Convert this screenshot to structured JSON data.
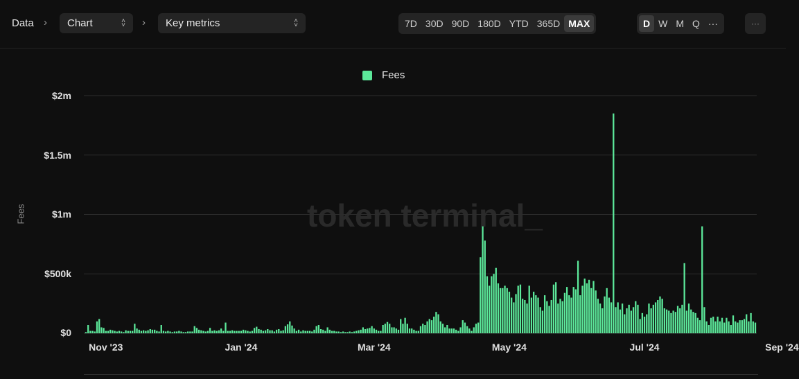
{
  "breadcrumb": {
    "root": "Data",
    "select1": "Chart",
    "select2": "Key metrics"
  },
  "range_buttons": [
    "7D",
    "30D",
    "90D",
    "180D",
    "YTD",
    "365D",
    "MAX"
  ],
  "range_active": "MAX",
  "granularity_buttons": [
    "D",
    "W",
    "M",
    "Q",
    "···"
  ],
  "granularity_active": "D",
  "more_label": "···",
  "watermark": "token terminal_",
  "colors": {
    "accent": "#5ce89a",
    "background": "#0f0f0f",
    "gridline": "#2c2c2c"
  },
  "chart_data": {
    "type": "bar",
    "title": "",
    "legend": [
      "Fees"
    ],
    "legend_position": "top-center",
    "ylabel": "Fees",
    "xlabel": "",
    "ylim": [
      0,
      2000000
    ],
    "yticks": [
      0,
      500000,
      1000000,
      1500000,
      2000000
    ],
    "ytick_labels": [
      "$0",
      "$500k",
      "$1m",
      "$1.5m",
      "$2m"
    ],
    "xticks": [
      "2023-11-01",
      "2024-01-01",
      "2024-03-01",
      "2024-05-01",
      "2024-07-01",
      "2024-09-01"
    ],
    "xtick_labels": [
      "Nov '23",
      "Jan '24",
      "Mar '24",
      "May '24",
      "Jul '24",
      "Sep '24"
    ],
    "grid": true,
    "series": [
      {
        "name": "Fees",
        "start_date": "2023-10-23",
        "interval": "1 day",
        "values": [
          10000,
          70000,
          20000,
          20000,
          15000,
          100000,
          120000,
          50000,
          45000,
          20000,
          20000,
          30000,
          25000,
          20000,
          15000,
          20000,
          15000,
          10000,
          25000,
          20000,
          20000,
          20000,
          80000,
          40000,
          30000,
          20000,
          25000,
          20000,
          25000,
          35000,
          30000,
          30000,
          20000,
          15000,
          70000,
          20000,
          15000,
          20000,
          15000,
          10000,
          15000,
          15000,
          20000,
          15000,
          10000,
          10000,
          15000,
          15000,
          15000,
          60000,
          45000,
          30000,
          25000,
          20000,
          15000,
          20000,
          45000,
          20000,
          25000,
          20000,
          25000,
          40000,
          20000,
          90000,
          20000,
          20000,
          25000,
          20000,
          20000,
          20000,
          20000,
          30000,
          25000,
          20000,
          15000,
          20000,
          45000,
          55000,
          35000,
          30000,
          20000,
          25000,
          35000,
          25000,
          25000,
          15000,
          30000,
          35000,
          20000,
          25000,
          60000,
          75000,
          100000,
          65000,
          40000,
          20000,
          30000,
          15000,
          25000,
          20000,
          20000,
          20000,
          15000,
          30000,
          60000,
          70000,
          35000,
          30000,
          20000,
          50000,
          30000,
          20000,
          20000,
          15000,
          15000,
          10000,
          15000,
          10000,
          10000,
          15000,
          10000,
          15000,
          20000,
          25000,
          30000,
          50000,
          35000,
          40000,
          45000,
          60000,
          40000,
          30000,
          20000,
          20000,
          70000,
          80000,
          95000,
          80000,
          50000,
          50000,
          40000,
          30000,
          120000,
          80000,
          130000,
          80000,
          40000,
          40000,
          30000,
          20000,
          20000,
          60000,
          80000,
          70000,
          100000,
          120000,
          110000,
          140000,
          180000,
          160000,
          100000,
          80000,
          50000,
          70000,
          40000,
          40000,
          40000,
          30000,
          20000,
          50000,
          110000,
          90000,
          60000,
          40000,
          20000,
          50000,
          80000,
          90000,
          640000,
          900000,
          780000,
          480000,
          400000,
          480000,
          500000,
          550000,
          420000,
          380000,
          380000,
          400000,
          380000,
          350000,
          300000,
          260000,
          330000,
          400000,
          410000,
          290000,
          280000,
          250000,
          400000,
          300000,
          350000,
          320000,
          300000,
          220000,
          190000,
          320000,
          270000,
          230000,
          280000,
          410000,
          430000,
          250000,
          290000,
          270000,
          340000,
          390000,
          320000,
          300000,
          390000,
          370000,
          610000,
          320000,
          400000,
          460000,
          420000,
          450000,
          380000,
          440000,
          360000,
          290000,
          250000,
          210000,
          310000,
          380000,
          300000,
          260000,
          1850000,
          220000,
          260000,
          200000,
          250000,
          160000,
          210000,
          240000,
          190000,
          220000,
          270000,
          240000,
          120000,
          170000,
          140000,
          160000,
          250000,
          210000,
          240000,
          260000,
          280000,
          310000,
          290000,
          210000,
          200000,
          190000,
          170000,
          190000,
          180000,
          230000,
          210000,
          240000,
          590000,
          190000,
          250000,
          200000,
          180000,
          170000,
          130000,
          110000,
          900000,
          220000,
          100000,
          70000,
          130000,
          140000,
          100000,
          140000,
          100000,
          130000,
          90000,
          130000,
          100000,
          70000,
          150000,
          100000,
          90000,
          110000,
          110000,
          120000,
          160000,
          100000,
          170000,
          100000,
          90000
        ]
      }
    ]
  }
}
